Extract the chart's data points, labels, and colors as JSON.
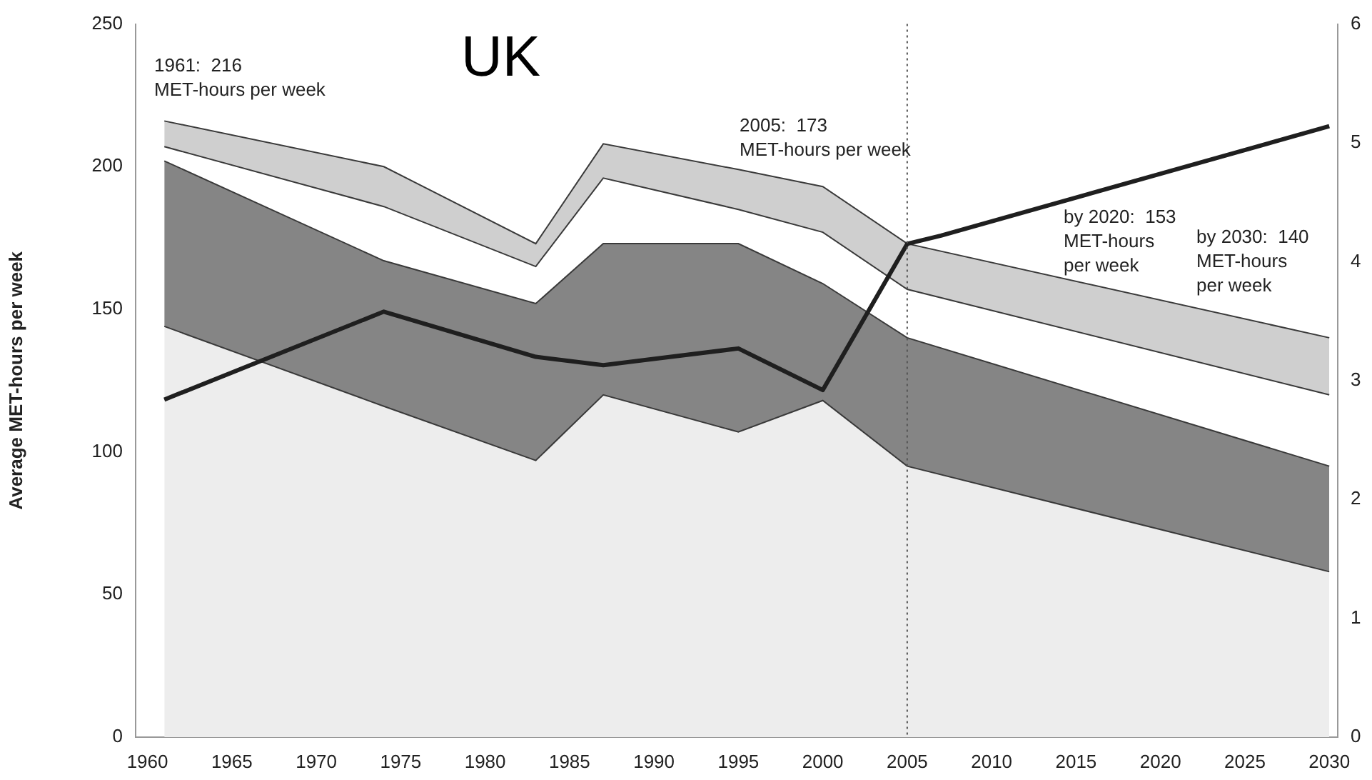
{
  "chart_data": {
    "type": "area",
    "title": "UK",
    "ylabel": "Average MET-hours per week",
    "stacked": true,
    "x": [
      1961,
      1974,
      1983,
      1987,
      1995,
      2000,
      2005,
      2030
    ],
    "xlim": [
      1959.3,
      2030.5
    ],
    "xticks": [
      1960,
      1965,
      1970,
      1975,
      1980,
      1985,
      1990,
      1995,
      2000,
      2005,
      2010,
      2015,
      2020,
      2025,
      2030
    ],
    "ylim": [
      0,
      250
    ],
    "yticks": [
      0,
      50,
      100,
      150,
      200,
      250
    ],
    "y2lim": [
      0,
      6
    ],
    "y2ticks": [
      0,
      1,
      2,
      3,
      4,
      5,
      6
    ],
    "series": [
      {
        "color": "#ededed",
        "values": [
          144,
          116,
          97,
          120,
          107,
          118,
          95,
          58
        ]
      },
      {
        "color": "#858585",
        "values": [
          58,
          51,
          55,
          53,
          66,
          41,
          45,
          37
        ]
      },
      {
        "color": "#ffffff",
        "values": [
          5,
          19,
          13,
          23,
          12,
          18,
          17,
          25
        ]
      },
      {
        "color": "#cfcfcf",
        "values": [
          9,
          14,
          8,
          12,
          14,
          16,
          16,
          20
        ]
      },
      {
        "type": "line",
        "axis": "y2",
        "color": "#1f1f1f",
        "x": [
          1961,
          1974,
          1983,
          1987,
          1995,
          2000,
          2005,
          2007,
          2030
        ],
        "values": [
          2.84,
          3.58,
          3.2,
          3.13,
          3.27,
          2.92,
          4.15,
          4.22,
          5.14
        ]
      }
    ],
    "ref_lines": [
      {
        "axis": "x",
        "value": 2005,
        "color": "#555555",
        "line_style": "dotted"
      }
    ],
    "annotations": [
      "1961:  216\nMET-hours per week",
      "2005:  173\nMET-hours per week",
      "by 2020:  153\nMET-hours\nper week",
      "by 2030:  140\nMET-hours\nper week"
    ]
  }
}
